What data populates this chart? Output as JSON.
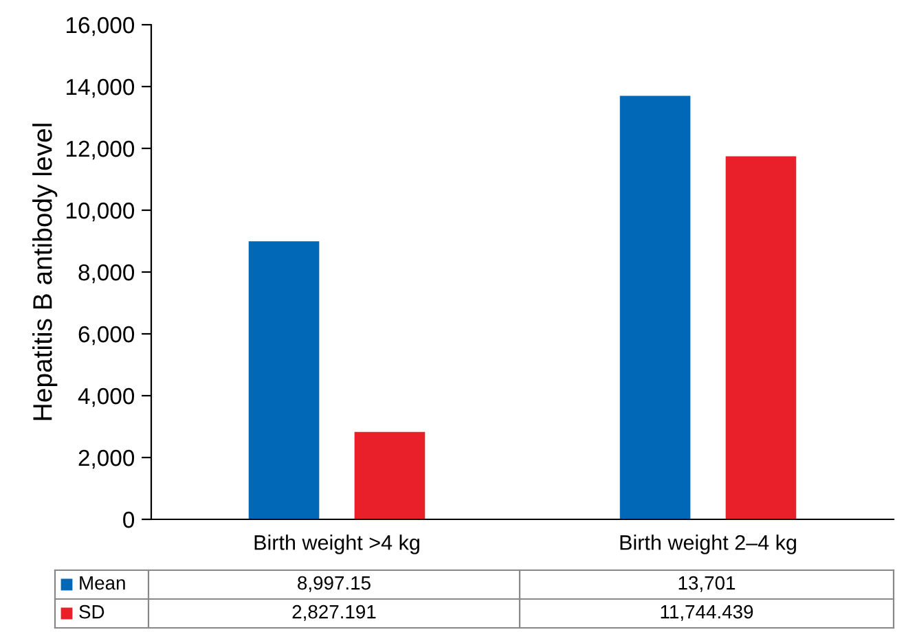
{
  "chart_data": {
    "type": "bar",
    "ylabel": "Hepatitis B antibody level",
    "categories": [
      "Birth weight >4 kg",
      "Birth weight 2–4 kg"
    ],
    "series": [
      {
        "name": "Mean",
        "color": "#0068b7",
        "values": [
          8997.15,
          13701
        ],
        "value_labels": [
          "8,997.15",
          "13,701"
        ]
      },
      {
        "name": "SD",
        "color": "#e9202a",
        "values": [
          2827.191,
          11744.439
        ],
        "value_labels": [
          "2,827.191",
          "11,744.439"
        ]
      }
    ],
    "ylim": [
      0,
      16000
    ],
    "yticks": [
      0,
      {
        "value": 2000,
        "label": "2,000"
      },
      {
        "value": 4000,
        "label": "4,000"
      },
      {
        "value": 6000,
        "label": "6,000"
      },
      {
        "value": 8000,
        "label": "8,000"
      },
      {
        "value": 10000,
        "label": "10,000"
      },
      {
        "value": 12000,
        "label": "12,000"
      },
      {
        "value": 14000,
        "label": "14,000"
      },
      {
        "value": 16000,
        "label": "16,000"
      }
    ],
    "legend": "bottom"
  }
}
